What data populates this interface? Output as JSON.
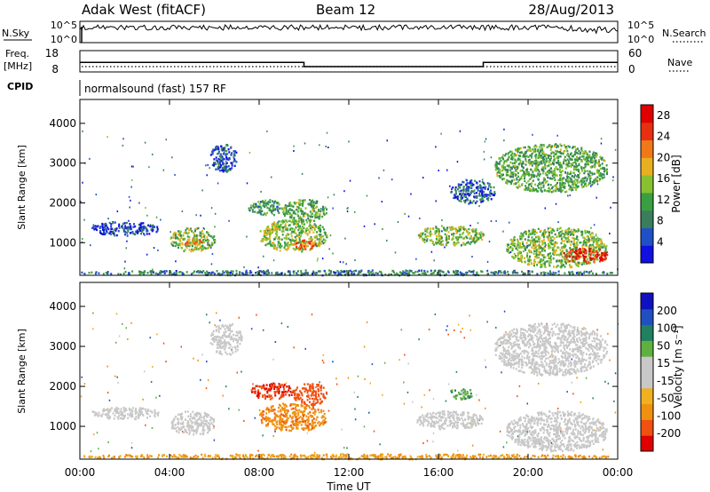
{
  "header": {
    "station": "Adak West (fitACF)",
    "beam": "Beam 12",
    "date": "28/Aug/2013"
  },
  "top_panels": {
    "nsky_label": "N.Sky",
    "nsky_ticks": [
      "10^5",
      "10^0"
    ],
    "nsearch_label": "N.Search",
    "nsearch_ticks": [
      "10^5",
      "10^0"
    ],
    "freq_label_1": "Freq.",
    "freq_label_2": "[MHz]",
    "freq_ticks": [
      "18",
      "8"
    ],
    "nave_label": "Nave",
    "nave_ticks": [
      "60",
      "0"
    ],
    "cpid_label": "CPID",
    "cpid_text": "normalsound (fast) 157 RF"
  },
  "colors": {
    "power": [
      "#1010e0",
      "#2050c8",
      "#3a7e5e",
      "#38a040",
      "#88c030",
      "#e8b020",
      "#f07818",
      "#e83010",
      "#e00000"
    ],
    "velocity": [
      "#e00000",
      "#f05010",
      "#f09010",
      "#f0b020",
      "#c8c8c8",
      "#c8c8c8",
      "#60b040",
      "#208060",
      "#2050c0",
      "#1010c0"
    ]
  },
  "chart_data": [
    {
      "type": "heatmap",
      "quantity": "Power",
      "xlabel": "Time UT",
      "ylabel": "Slant Range [km]",
      "xlim": [
        0,
        24
      ],
      "ylim": [
        180,
        4600
      ],
      "x_ticks": [
        "00:00",
        "04:00",
        "08:00",
        "12:00",
        "16:00",
        "20:00",
        "00:00"
      ],
      "y_ticks": [
        1000,
        2000,
        3000,
        4000
      ],
      "colorbar": {
        "label": "Power [dB]",
        "ticks": [
          "4",
          "8",
          "12",
          "16",
          "20",
          "24",
          "28"
        ],
        "range": [
          0,
          30
        ]
      },
      "regions": [
        {
          "t0": 0.0,
          "t1": 24.0,
          "r0": 200,
          "r1": 330,
          "level": 8
        },
        {
          "t0": 0.5,
          "t1": 3.5,
          "r0": 1200,
          "r1": 1550,
          "level": 4
        },
        {
          "t0": 4.0,
          "t1": 6.0,
          "r0": 800,
          "r1": 1400,
          "level": 14
        },
        {
          "t0": 4.6,
          "t1": 5.4,
          "r0": 950,
          "r1": 1150,
          "level": 20
        },
        {
          "t0": 5.8,
          "t1": 7.0,
          "r0": 2800,
          "r1": 3500,
          "level": 6
        },
        {
          "t0": 7.5,
          "t1": 9.0,
          "r0": 1700,
          "r1": 2100,
          "level": 10
        },
        {
          "t0": 8.0,
          "t1": 11.0,
          "r0": 800,
          "r1": 1600,
          "level": 14
        },
        {
          "t0": 9.5,
          "t1": 10.5,
          "r0": 850,
          "r1": 1100,
          "level": 22
        },
        {
          "t0": 9.0,
          "t1": 11.0,
          "r0": 1550,
          "r1": 2100,
          "level": 12
        },
        {
          "t0": 15.0,
          "t1": 18.0,
          "r0": 950,
          "r1": 1450,
          "level": 14
        },
        {
          "t0": 16.5,
          "t1": 18.5,
          "r0": 2000,
          "r1": 2600,
          "level": 6
        },
        {
          "t0": 18.5,
          "t1": 23.5,
          "r0": 2300,
          "r1": 3500,
          "level": 12
        },
        {
          "t0": 19.0,
          "t1": 23.5,
          "r0": 400,
          "r1": 1400,
          "level": 14
        },
        {
          "t0": 21.5,
          "t1": 23.5,
          "r0": 500,
          "r1": 900,
          "level": 26
        }
      ]
    },
    {
      "type": "heatmap",
      "quantity": "Velocity",
      "xlabel": "Time UT",
      "ylabel": "Slant Range [km]",
      "xlim": [
        0,
        24
      ],
      "ylim": [
        180,
        4600
      ],
      "x_ticks": [
        "00:00",
        "04:00",
        "08:00",
        "12:00",
        "16:00",
        "20:00",
        "00:00"
      ],
      "y_ticks": [
        1000,
        2000,
        3000,
        4000
      ],
      "colorbar": {
        "label": "Velocity [m s⁻¹]",
        "ticks": [
          "200",
          "100",
          "50",
          "15",
          "-15",
          "-50",
          "-100",
          "-200"
        ],
        "range": [
          -250,
          250
        ]
      },
      "regions": [
        {
          "t0": 0.0,
          "t1": 24.0,
          "r0": 200,
          "r1": 330,
          "level": -60
        },
        {
          "t0": 0.5,
          "t1": 3.5,
          "r0": 1200,
          "r1": 1500,
          "level": 0
        },
        {
          "t0": 4.0,
          "t1": 6.0,
          "r0": 800,
          "r1": 1400,
          "level": 0
        },
        {
          "t0": 5.8,
          "t1": 7.2,
          "r0": 2800,
          "r1": 3600,
          "level": 0
        },
        {
          "t0": 7.6,
          "t1": 9.5,
          "r0": 1700,
          "r1": 2100,
          "level": -200
        },
        {
          "t0": 8.0,
          "t1": 11.0,
          "r0": 900,
          "r1": 1600,
          "level": -80
        },
        {
          "t0": 9.5,
          "t1": 11.0,
          "r0": 1550,
          "r1": 2100,
          "level": -160
        },
        {
          "t0": 15.0,
          "t1": 18.0,
          "r0": 950,
          "r1": 1400,
          "level": 0
        },
        {
          "t0": 16.5,
          "t1": 17.5,
          "r0": 1700,
          "r1": 2000,
          "level": 40
        },
        {
          "t0": 18.5,
          "t1": 23.5,
          "r0": 2300,
          "r1": 3600,
          "level": 0
        },
        {
          "t0": 19.0,
          "t1": 23.5,
          "r0": 400,
          "r1": 1400,
          "level": 0
        }
      ]
    },
    {
      "type": "line",
      "quantity": "Frequency",
      "ylabel": "Freq. [MHz]",
      "xlim": [
        0,
        24
      ],
      "ylim": [
        8,
        18
      ],
      "x": [
        0,
        10,
        10,
        18,
        18,
        24
      ],
      "values": [
        12.5,
        12.5,
        10.5,
        10.5,
        12.5,
        12.5
      ]
    }
  ]
}
